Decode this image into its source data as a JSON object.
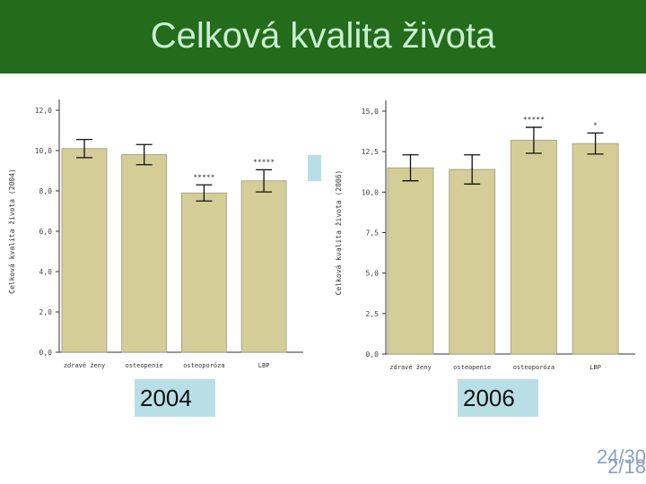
{
  "title": "Celková kvalita života",
  "labels": [
    "2004",
    "2006"
  ],
  "page_numbers": [
    "24/30",
    "2/18"
  ],
  "chart_data": [
    {
      "type": "bar",
      "y_label": "Celková kvalita života (2004)",
      "categories": [
        "zdravé ženy",
        "osteopenie",
        "osteoporóza",
        "LBP"
      ],
      "values": [
        10.1,
        9.8,
        7.9,
        8.5
      ],
      "errors": [
        0.45,
        0.5,
        0.4,
        0.55
      ],
      "annotations": [
        null,
        null,
        "*****",
        "*****"
      ],
      "color": "#d4cd97",
      "ylim": [
        0,
        12
      ],
      "yticks": [
        {
          "value": 0,
          "label": "0,0"
        },
        {
          "value": 2,
          "label": "2,0"
        },
        {
          "value": 4,
          "label": "4,0"
        },
        {
          "value": 6,
          "label": "6,0"
        },
        {
          "value": 8,
          "label": "8,0"
        },
        {
          "value": 10,
          "label": "10,0"
        },
        {
          "value": 12,
          "label": "12,0"
        }
      ]
    },
    {
      "type": "bar",
      "y_label": "Celková kvalita života (2006)",
      "categories": [
        "zdravé ženy",
        "osteopenie",
        "osteoporóza",
        "LBP"
      ],
      "values": [
        11.5,
        11.4,
        13.2,
        13.0
      ],
      "errors": [
        0.8,
        0.9,
        0.8,
        0.65
      ],
      "annotations": [
        null,
        null,
        "*****",
        "*"
      ],
      "color": "#d4cd97",
      "ylim": [
        0,
        15
      ],
      "yticks": [
        {
          "value": 0,
          "label": "0,0"
        },
        {
          "value": 2.5,
          "label": "2,5"
        },
        {
          "value": 5,
          "label": "5,0"
        },
        {
          "value": 7.5,
          "label": "7,5"
        },
        {
          "value": 10,
          "label": "10,0"
        },
        {
          "value": 12.5,
          "label": "12,5"
        },
        {
          "value": 15,
          "label": "15,0"
        }
      ]
    }
  ]
}
